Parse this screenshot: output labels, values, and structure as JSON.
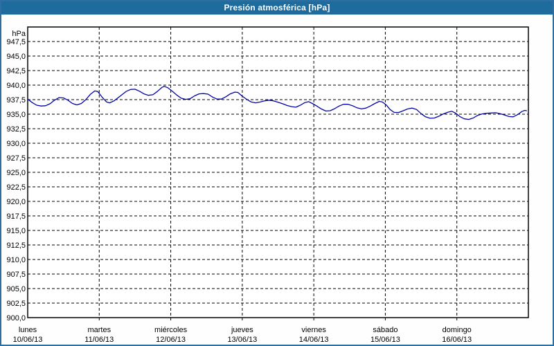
{
  "window": {
    "title": "Presión atmosférica [hPa]"
  },
  "colors": {
    "titlebar_bg": "#1e6b9e",
    "title_text": "#ffffff",
    "frame_border": "#2e6f9f",
    "page_background": "#fdfefd",
    "plot_background": "#ffffff",
    "plot_border": "#000000",
    "gridline": "#000000",
    "axis_text": "#000000",
    "series_line": "#0202a6"
  },
  "chart_data": {
    "type": "line",
    "title": "Presión atmosférica [hPa]",
    "ylabel": "hPa",
    "unit_label": "hPa",
    "ylim": [
      900,
      950
    ],
    "ytick_step": 2.5,
    "grid": "dashed",
    "legend_position": "none",
    "yticks": [
      {
        "value": 947.5,
        "label": "947,5"
      },
      {
        "value": 945.0,
        "label": "945,0"
      },
      {
        "value": 942.5,
        "label": "942,5"
      },
      {
        "value": 940.0,
        "label": "940,0"
      },
      {
        "value": 937.5,
        "label": "937,5"
      },
      {
        "value": 935.0,
        "label": "935,0"
      },
      {
        "value": 932.5,
        "label": "932,5"
      },
      {
        "value": 930.0,
        "label": "930,0"
      },
      {
        "value": 927.5,
        "label": "927,5"
      },
      {
        "value": 925.0,
        "label": "925,0"
      },
      {
        "value": 922.5,
        "label": "922,5"
      },
      {
        "value": 920.0,
        "label": "920,0"
      },
      {
        "value": 917.5,
        "label": "917,5"
      },
      {
        "value": 915.0,
        "label": "915,0"
      },
      {
        "value": 912.5,
        "label": "912,5"
      },
      {
        "value": 910.0,
        "label": "910,0"
      },
      {
        "value": 907.5,
        "label": "907,5"
      },
      {
        "value": 905.0,
        "label": "905,0"
      },
      {
        "value": 902.5,
        "label": "902,5"
      },
      {
        "value": 900.0,
        "label": "900,0"
      }
    ],
    "x_total_hours": 168,
    "x_days": [
      {
        "name": "lunes",
        "date": "10/06/13"
      },
      {
        "name": "martes",
        "date": "11/06/13"
      },
      {
        "name": "miércoles",
        "date": "12/06/13"
      },
      {
        "name": "jueves",
        "date": "13/06/13"
      },
      {
        "name": "viernes",
        "date": "14/06/13"
      },
      {
        "name": "sábado",
        "date": "15/06/13"
      },
      {
        "name": "domingo",
        "date": "16/06/13"
      }
    ],
    "series": [
      {
        "name": "Presión atmosférica",
        "color": "#0202a6",
        "points": [
          [
            0,
            937.6
          ],
          [
            1.5,
            937.0
          ],
          [
            3,
            936.55
          ],
          [
            4.5,
            936.4
          ],
          [
            6,
            936.45
          ],
          [
            7.5,
            936.8
          ],
          [
            9,
            937.4
          ],
          [
            10.5,
            937.85
          ],
          [
            12,
            937.8
          ],
          [
            13.5,
            937.4
          ],
          [
            15,
            936.85
          ],
          [
            16.5,
            936.6
          ],
          [
            18,
            936.85
          ],
          [
            19.5,
            937.5
          ],
          [
            21,
            938.4
          ],
          [
            22.5,
            939.0
          ],
          [
            23.5,
            938.9
          ],
          [
            25,
            937.9
          ],
          [
            26.5,
            937.1
          ],
          [
            27.5,
            936.95
          ],
          [
            29,
            937.3
          ],
          [
            31,
            938.1
          ],
          [
            33,
            938.9
          ],
          [
            34.5,
            939.25
          ],
          [
            36,
            939.3
          ],
          [
            37.5,
            938.95
          ],
          [
            39,
            938.5
          ],
          [
            40.5,
            938.25
          ],
          [
            42,
            938.35
          ],
          [
            43.5,
            938.9
          ],
          [
            45,
            939.6
          ],
          [
            45.8,
            939.8
          ],
          [
            47,
            939.55
          ],
          [
            48.5,
            938.95
          ],
          [
            50,
            938.3
          ],
          [
            51.5,
            937.75
          ],
          [
            53,
            937.55
          ],
          [
            54.5,
            937.65
          ],
          [
            56,
            938.15
          ],
          [
            57.5,
            938.5
          ],
          [
            59,
            938.55
          ],
          [
            60.5,
            938.45
          ],
          [
            62,
            937.95
          ],
          [
            63.5,
            937.6
          ],
          [
            65,
            937.6
          ],
          [
            66.5,
            938.0
          ],
          [
            68,
            938.5
          ],
          [
            69.5,
            938.8
          ],
          [
            70.5,
            938.75
          ],
          [
            72,
            938.1
          ],
          [
            73.5,
            937.55
          ],
          [
            75,
            937.1
          ],
          [
            76.5,
            936.95
          ],
          [
            78,
            937.1
          ],
          [
            79.5,
            937.3
          ],
          [
            81,
            937.4
          ],
          [
            82.5,
            937.3
          ],
          [
            84,
            937.05
          ],
          [
            85.5,
            936.8
          ],
          [
            87,
            936.5
          ],
          [
            88.5,
            936.3
          ],
          [
            90,
            936.2
          ],
          [
            91.5,
            936.55
          ],
          [
            93,
            937.0
          ],
          [
            94.3,
            937.15
          ],
          [
            95.5,
            936.85
          ],
          [
            97,
            936.4
          ],
          [
            98.5,
            935.9
          ],
          [
            100,
            935.55
          ],
          [
            101.5,
            935.6
          ],
          [
            103,
            935.95
          ],
          [
            104.5,
            936.4
          ],
          [
            106,
            936.7
          ],
          [
            107.5,
            936.7
          ],
          [
            109,
            936.45
          ],
          [
            110.5,
            936.1
          ],
          [
            112,
            935.9
          ],
          [
            113.5,
            936.05
          ],
          [
            115,
            936.4
          ],
          [
            116.5,
            936.85
          ],
          [
            118,
            937.2
          ],
          [
            119,
            937.1
          ],
          [
            120.3,
            936.6
          ],
          [
            121.6,
            935.8
          ],
          [
            123,
            935.3
          ],
          [
            124.5,
            935.3
          ],
          [
            126,
            935.6
          ],
          [
            127.5,
            935.9
          ],
          [
            129,
            936.05
          ],
          [
            130.5,
            935.8
          ],
          [
            132,
            935.1
          ],
          [
            133.5,
            934.55
          ],
          [
            135,
            934.3
          ],
          [
            136.5,
            934.35
          ],
          [
            138,
            934.65
          ],
          [
            139.5,
            935.05
          ],
          [
            141,
            935.35
          ],
          [
            142.3,
            935.5
          ],
          [
            143.5,
            935.2
          ],
          [
            145,
            934.6
          ],
          [
            146.5,
            934.2
          ],
          [
            148,
            934.1
          ],
          [
            149.5,
            934.35
          ],
          [
            151,
            934.8
          ],
          [
            152.5,
            935.05
          ],
          [
            154,
            935.15
          ],
          [
            155.5,
            935.2
          ],
          [
            157,
            935.25
          ],
          [
            158.5,
            935.1
          ],
          [
            160,
            934.85
          ],
          [
            161.5,
            934.6
          ],
          [
            162.9,
            934.55
          ],
          [
            164.5,
            934.95
          ],
          [
            165.8,
            935.45
          ],
          [
            166.8,
            935.65
          ],
          [
            167.4,
            935.6
          ]
        ]
      }
    ]
  }
}
